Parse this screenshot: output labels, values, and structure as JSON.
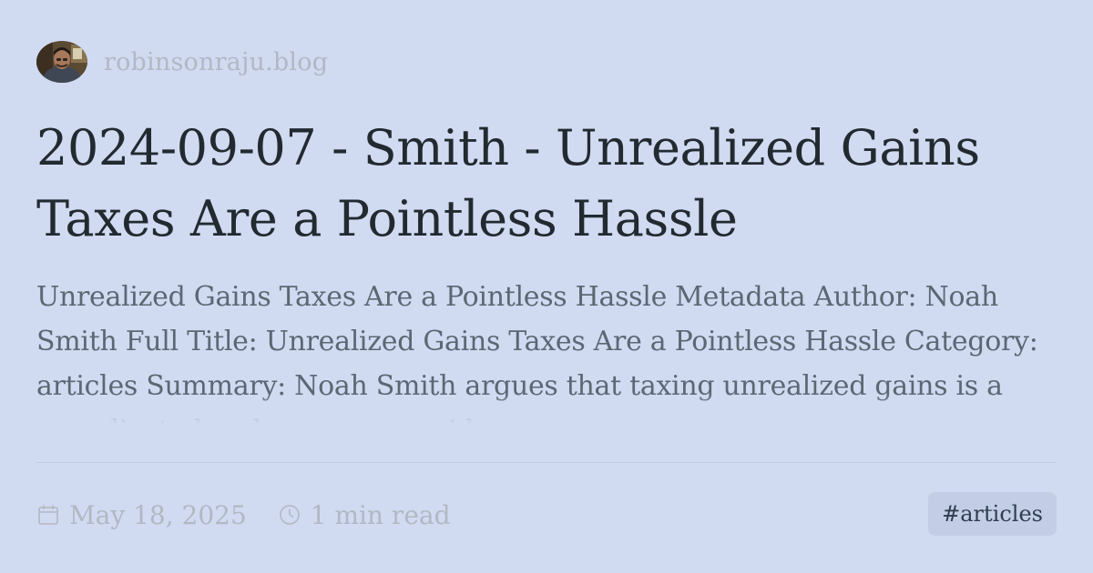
{
  "site": {
    "name": "robinsonraju.blog",
    "avatar_icon": "author-avatar-photo"
  },
  "post": {
    "title": "2024-09-07 - Smith - Unrealized Gains Taxes Are a Pointless Hassle",
    "excerpt": "Unrealized Gains Taxes Are a Pointless Hassle Metadata Author: Noah Smith Full Title: Unrealized Gains Taxes Are a Pointless Hassle Category: articles Summary: Noah Smith argues that taxing unrealized gains is a complicated and unnecessary idea"
  },
  "meta": {
    "date": "May 18, 2025",
    "date_icon": "calendar-icon",
    "read_time": "1 min read",
    "read_time_icon": "clock-icon"
  },
  "tag": {
    "label": "#articles"
  },
  "colors": {
    "background": "#d0dbf2",
    "title": "#222a30",
    "excerpt": "#5d6773",
    "muted": "#b2b8c2",
    "tag_bg": "#c3cee6",
    "tag_text": "#2f3d4f"
  }
}
